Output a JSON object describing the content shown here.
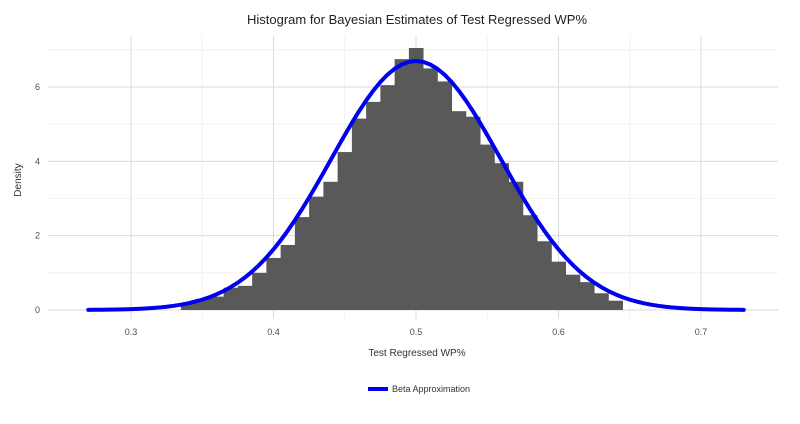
{
  "chart_data": {
    "type": "bar",
    "title": "Histogram for Bayesian Estimates of Test Regressed WP%",
    "xlabel": "Test Regressed WP%",
    "ylabel": "Density",
    "xlim": [
      0.265,
      0.735
    ],
    "ylim": [
      0,
      7.3
    ],
    "xticks": [
      0.3,
      0.4,
      0.5,
      0.6,
      0.7
    ],
    "xtick_labels": [
      "0.3",
      "0.4",
      "0.5",
      "0.6",
      "0.7"
    ],
    "yticks": [
      0,
      2,
      4,
      6
    ],
    "ytick_labels": [
      "0",
      "2",
      "4",
      "6"
    ],
    "grid": true,
    "bin_width": 0.01,
    "bins": [
      {
        "x": 0.34,
        "y": 0.18
      },
      {
        "x": 0.35,
        "y": 0.3
      },
      {
        "x": 0.36,
        "y": 0.36
      },
      {
        "x": 0.37,
        "y": 0.6
      },
      {
        "x": 0.38,
        "y": 0.65
      },
      {
        "x": 0.39,
        "y": 1.0
      },
      {
        "x": 0.4,
        "y": 1.4
      },
      {
        "x": 0.41,
        "y": 1.75
      },
      {
        "x": 0.42,
        "y": 2.5
      },
      {
        "x": 0.43,
        "y": 3.05
      },
      {
        "x": 0.44,
        "y": 3.45
      },
      {
        "x": 0.45,
        "y": 4.25
      },
      {
        "x": 0.46,
        "y": 5.15
      },
      {
        "x": 0.47,
        "y": 5.6
      },
      {
        "x": 0.48,
        "y": 6.05
      },
      {
        "x": 0.49,
        "y": 6.75
      },
      {
        "x": 0.5,
        "y": 7.05
      },
      {
        "x": 0.51,
        "y": 6.5
      },
      {
        "x": 0.52,
        "y": 6.15
      },
      {
        "x": 0.53,
        "y": 5.35
      },
      {
        "x": 0.54,
        "y": 5.2
      },
      {
        "x": 0.55,
        "y": 4.45
      },
      {
        "x": 0.56,
        "y": 3.95
      },
      {
        "x": 0.57,
        "y": 3.45
      },
      {
        "x": 0.58,
        "y": 2.55
      },
      {
        "x": 0.59,
        "y": 1.85
      },
      {
        "x": 0.6,
        "y": 1.3
      },
      {
        "x": 0.61,
        "y": 0.95
      },
      {
        "x": 0.62,
        "y": 0.75
      },
      {
        "x": 0.63,
        "y": 0.45
      },
      {
        "x": 0.64,
        "y": 0.25
      }
    ],
    "bar_color": "#595959",
    "curve": {
      "name": "Beta Approximation",
      "type": "line",
      "color": "#0000ee",
      "x_range": [
        0.27,
        0.73
      ],
      "x_step": 0.005,
      "mode": 0.5,
      "peak_density": 6.7,
      "stddev": 0.0595
    },
    "legend_position": "bottom"
  }
}
